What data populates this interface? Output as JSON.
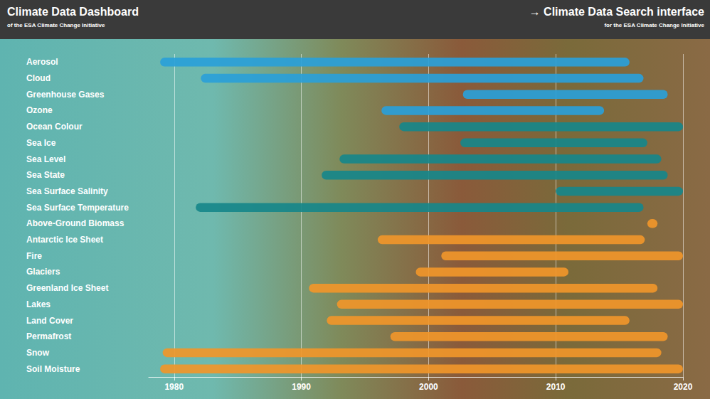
{
  "chart_data": {
    "type": "bar",
    "orientation": "horizontal",
    "title": "Climate Data Dashboard",
    "subtitle": "of the ESA Climate Change Initiative",
    "annotations": [
      "→ Climate Data Search interface",
      "for the ESA Climate Change Initiative"
    ],
    "categories": [
      "Aerosol",
      "Cloud",
      "Greenhouse Gases",
      "Ozone",
      "Ocean Colour",
      "Sea Ice",
      "Sea Level",
      "Sea State",
      "Sea Surface Salinity",
      "Sea Surface Temperature",
      "Above-Ground Biomass",
      "Antarctic Ice Sheet",
      "Fire",
      "Glaciers",
      "Greenland Ice Sheet",
      "Lakes",
      "Land Cover",
      "Permafrost",
      "Snow",
      "Soil Moisture"
    ],
    "starts": [
      1978.9,
      1982.1,
      2002.7,
      1996.3,
      1997.7,
      2002.5,
      1993.0,
      1991.6,
      2010.0,
      1981.7,
      2017.2,
      1996.0,
      2001.0,
      1999.0,
      1990.6,
      1992.8,
      1992.0,
      1997.0,
      1979.1,
      1978.9
    ],
    "ends": [
      2015.8,
      2016.9,
      2018.8,
      2013.8,
      2020.0,
      2017.2,
      2018.3,
      2018.8,
      2020.0,
      2016.9,
      2018.0,
      2017.0,
      2020.0,
      2011.0,
      2018.0,
      2020.0,
      2015.8,
      2018.8,
      2018.3,
      2020.0
    ],
    "colors": [
      "#2a9fd8",
      "#2a9fd8",
      "#2a9fd8",
      "#2a9fd8",
      "#17878a",
      "#17878a",
      "#17878a",
      "#17878a",
      "#17878a",
      "#17878a",
      "#f0962a",
      "#f0962a",
      "#f0962a",
      "#f0962a",
      "#f0962a",
      "#f0962a",
      "#f0962a",
      "#f0962a",
      "#f0962a",
      "#f0962a"
    ],
    "xlim": [
      1978,
      2020
    ],
    "xticks": [
      1980,
      1990,
      2000,
      2010,
      2020
    ],
    "grid": true
  }
}
